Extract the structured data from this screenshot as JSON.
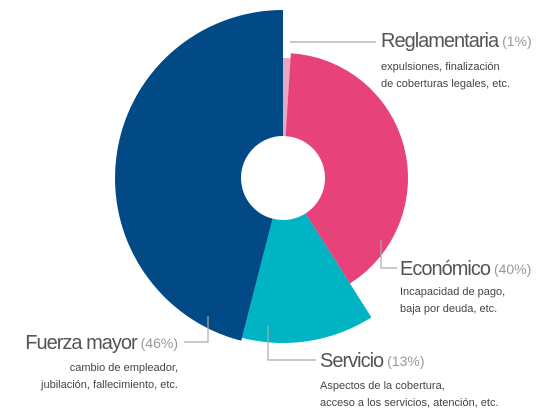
{
  "chart_data": {
    "type": "pie",
    "categories": [
      "Reglamentaria",
      "Económico",
      "Servicio",
      "Fuerza mayor"
    ],
    "values": [
      1,
      40,
      13,
      46
    ],
    "value_labels": [
      "(1%)",
      "(40%)",
      "(13%)",
      "(46%)"
    ],
    "descriptions": [
      [
        "expulsiones, finalización",
        "de coberturas legales, etc."
      ],
      [
        "Incapacidad de pago,",
        "baja por deuda, etc."
      ],
      [
        "Aspectos de la cobertura,",
        "acceso a los servicios, atención, etc."
      ],
      [
        "cambio de empleador,",
        "jubilación, fallecimiento, etc."
      ]
    ],
    "colors": [
      "#e9a6bf",
      "#e8427b",
      "#00b4c3",
      "#014a86"
    ]
  }
}
